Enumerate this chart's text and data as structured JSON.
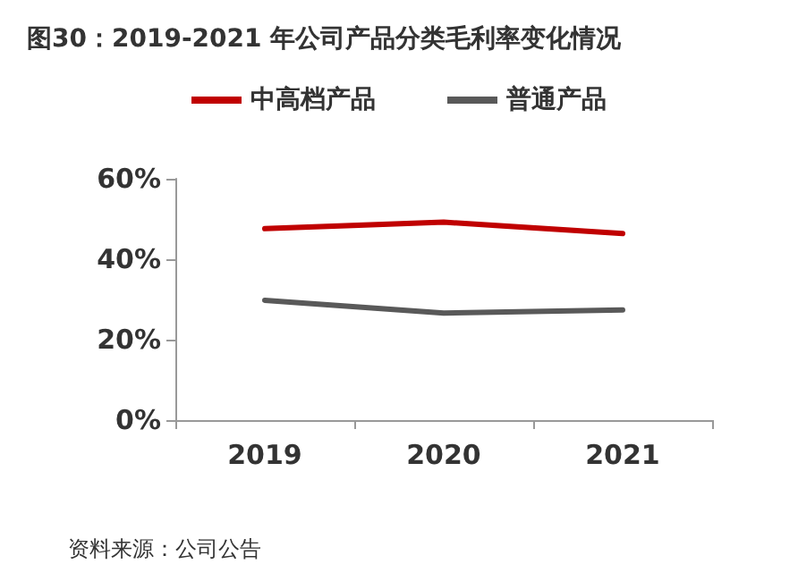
{
  "chart_data": {
    "type": "line",
    "title": "图30：2019-2021 年公司产品分类毛利率变化情况",
    "categories": [
      "2019",
      "2020",
      "2021"
    ],
    "series": [
      {
        "name": "中高档产品",
        "color": "#c00000",
        "values": [
          47.6,
          49.2,
          46.4
        ]
      },
      {
        "name": "普通产品",
        "color": "#595959",
        "values": [
          29.8,
          26.6,
          27.4
        ]
      }
    ],
    "ylim": [
      0,
      60
    ],
    "yticks": [
      {
        "value": 0,
        "label": "0%"
      },
      {
        "value": 20,
        "label": "20%"
      },
      {
        "value": 40,
        "label": "40%"
      },
      {
        "value": 60,
        "label": "60%"
      }
    ],
    "grid": false,
    "legend": "top",
    "marker": "none",
    "line_style": "solid",
    "annotations": [
      "资料来源：公司公告"
    ]
  }
}
